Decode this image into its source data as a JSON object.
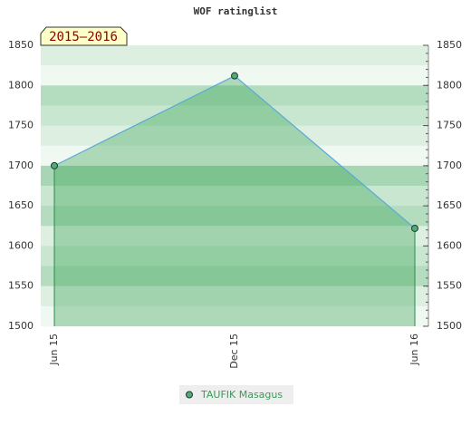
{
  "chart_data": {
    "type": "line",
    "title": "WOF ratinglist",
    "label": "2015–2016",
    "categories": [
      "Jun 15",
      "Dec 15",
      "Jun 16"
    ],
    "series": [
      {
        "name": "TAUFIK Masagus",
        "color": "#5aa9d8",
        "values": [
          1700,
          1812,
          1622
        ]
      }
    ],
    "ylim": [
      1500,
      1850
    ],
    "yticks": [
      1500,
      1550,
      1600,
      1650,
      1700,
      1750,
      1800,
      1850
    ]
  }
}
